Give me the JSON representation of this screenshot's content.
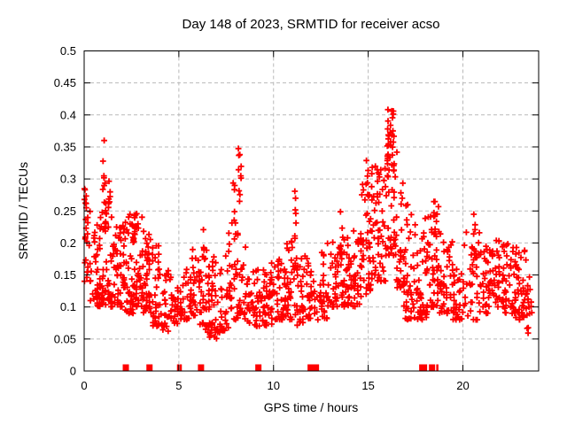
{
  "chart_data": {
    "type": "scatter",
    "title": "Day 148 of 2023, SRMTID for receiver acso",
    "xlabel": "GPS time / hours",
    "ylabel": "SRMTID / TECUs",
    "xlim": [
      0,
      24
    ],
    "ylim": [
      0,
      0.5
    ],
    "grid": true,
    "legend": "none",
    "x_ticks": {
      "values": [
        0,
        5,
        10,
        15,
        20
      ],
      "labels": [
        "0",
        "5",
        "10",
        "15",
        "20"
      ]
    },
    "y_ticks": {
      "values": [
        0,
        0.05,
        0.1,
        0.15,
        0.2,
        0.25,
        0.3,
        0.35,
        0.4,
        0.45,
        0.5
      ],
      "labels": [
        "0",
        "0.05",
        "0.1",
        "0.15",
        "0.2",
        "0.25",
        "0.3",
        "0.35",
        "0.4",
        "0.45",
        "0.5"
      ]
    },
    "marker": {
      "shape": "plus",
      "color": "#ff0000",
      "size": 3.4,
      "stroke_width": 1.8
    },
    "grid_color": "#b9b9b9",
    "seed": 1148,
    "density_bins": [
      [
        0.0,
        0.35,
        22,
        0.14,
        0.26,
        1.6
      ],
      [
        0.35,
        0.7,
        18,
        0.11,
        0.22,
        1.5
      ],
      [
        0.7,
        1.0,
        35,
        0.1,
        0.25,
        1.5
      ],
      [
        1.0,
        1.6,
        50,
        0.1,
        0.27,
        1.6
      ],
      [
        1.6,
        2.1,
        40,
        0.1,
        0.23,
        1.6
      ],
      [
        2.1,
        2.6,
        45,
        0.09,
        0.25,
        1.7
      ],
      [
        2.6,
        3.1,
        42,
        0.1,
        0.25,
        1.6
      ],
      [
        3.1,
        3.6,
        40,
        0.09,
        0.22,
        1.6
      ],
      [
        3.6,
        4.1,
        35,
        0.07,
        0.2,
        1.7
      ],
      [
        4.1,
        4.6,
        28,
        0.06,
        0.16,
        1.4
      ],
      [
        4.6,
        5.1,
        24,
        0.07,
        0.14,
        1.3
      ],
      [
        5.1,
        5.6,
        26,
        0.08,
        0.16,
        1.4
      ],
      [
        5.6,
        6.1,
        30,
        0.08,
        0.19,
        1.5
      ],
      [
        6.1,
        6.6,
        34,
        0.06,
        0.21,
        1.6
      ],
      [
        6.6,
        7.1,
        34,
        0.05,
        0.18,
        1.5
      ],
      [
        7.1,
        7.6,
        28,
        0.06,
        0.18,
        1.5
      ],
      [
        7.6,
        8.1,
        30,
        0.08,
        0.24,
        1.7
      ],
      [
        8.1,
        8.6,
        30,
        0.08,
        0.22,
        1.8
      ],
      [
        8.6,
        9.1,
        26,
        0.07,
        0.16,
        1.4
      ],
      [
        9.1,
        9.6,
        30,
        0.07,
        0.16,
        1.4
      ],
      [
        9.6,
        10.1,
        30,
        0.07,
        0.17,
        1.4
      ],
      [
        10.1,
        10.6,
        34,
        0.08,
        0.2,
        1.6
      ],
      [
        10.6,
        11.1,
        32,
        0.08,
        0.22,
        1.7
      ],
      [
        11.1,
        11.7,
        34,
        0.07,
        0.19,
        1.5
      ],
      [
        11.7,
        12.3,
        30,
        0.08,
        0.18,
        1.4
      ],
      [
        12.3,
        13.0,
        32,
        0.08,
        0.2,
        1.5
      ],
      [
        13.0,
        13.6,
        36,
        0.1,
        0.21,
        1.4
      ],
      [
        13.6,
        14.1,
        40,
        0.1,
        0.22,
        1.4
      ],
      [
        14.1,
        14.6,
        30,
        0.1,
        0.22,
        1.4
      ],
      [
        14.6,
        15.2,
        40,
        0.12,
        0.3,
        1.7
      ],
      [
        15.2,
        15.9,
        46,
        0.14,
        0.32,
        1.5
      ],
      [
        15.9,
        16.5,
        40,
        0.18,
        0.38,
        1.4
      ],
      [
        16.5,
        16.9,
        30,
        0.13,
        0.33,
        1.7
      ],
      [
        16.9,
        17.6,
        46,
        0.08,
        0.26,
        1.6
      ],
      [
        17.6,
        18.1,
        44,
        0.08,
        0.24,
        1.5
      ],
      [
        18.1,
        18.8,
        46,
        0.1,
        0.26,
        1.6
      ],
      [
        18.8,
        19.5,
        44,
        0.09,
        0.22,
        1.5
      ],
      [
        19.5,
        20.1,
        30,
        0.08,
        0.18,
        1.4
      ],
      [
        20.1,
        20.9,
        34,
        0.08,
        0.22,
        1.6
      ],
      [
        20.9,
        21.4,
        30,
        0.09,
        0.2,
        1.5
      ],
      [
        21.4,
        22.1,
        40,
        0.1,
        0.21,
        1.5
      ],
      [
        22.1,
        22.8,
        46,
        0.09,
        0.2,
        1.4
      ],
      [
        22.8,
        23.4,
        40,
        0.08,
        0.19,
        1.4
      ],
      [
        23.4,
        23.65,
        14,
        0.05,
        0.15,
        1.2
      ]
    ],
    "spike_columns": [
      [
        0.07,
        0.25,
        0.285,
        6,
        0.12
      ],
      [
        1.05,
        0.26,
        0.36,
        8,
        0.15
      ],
      [
        1.35,
        0.24,
        0.3,
        5,
        0.15
      ],
      [
        2.7,
        0.21,
        0.26,
        5,
        0.15
      ],
      [
        6.35,
        0.17,
        0.225,
        5,
        0.12
      ],
      [
        7.9,
        0.24,
        0.3,
        4,
        0.1
      ],
      [
        8.2,
        0.2,
        0.35,
        10,
        0.18
      ],
      [
        11.15,
        0.2,
        0.29,
        7,
        0.12
      ],
      [
        13.55,
        0.18,
        0.25,
        4,
        0.15
      ],
      [
        14.95,
        0.24,
        0.35,
        9,
        0.15
      ],
      [
        15.55,
        0.24,
        0.315,
        6,
        0.15
      ],
      [
        16.05,
        0.28,
        0.43,
        11,
        0.12
      ],
      [
        16.3,
        0.28,
        0.455,
        11,
        0.12
      ],
      [
        16.2,
        0.33,
        0.4,
        6,
        0.3
      ],
      [
        18.5,
        0.21,
        0.27,
        6,
        0.15
      ],
      [
        20.55,
        0.19,
        0.245,
        5,
        0.2
      ]
    ],
    "zero_markers": [
      {
        "x": 2.2,
        "w": 7
      },
      {
        "x": 3.45,
        "w": 7
      },
      {
        "x": 4.96,
        "w": 2.5
      },
      {
        "x": 5.1,
        "w": 2.5
      },
      {
        "x": 6.17,
        "w": 7
      },
      {
        "x": 9.2,
        "w": 7
      },
      {
        "x": 12.1,
        "w": 13
      },
      {
        "x": 17.9,
        "w": 9
      },
      {
        "x": 18.37,
        "w": 7
      },
      {
        "x": 18.65,
        "w": 2.5
      }
    ]
  }
}
